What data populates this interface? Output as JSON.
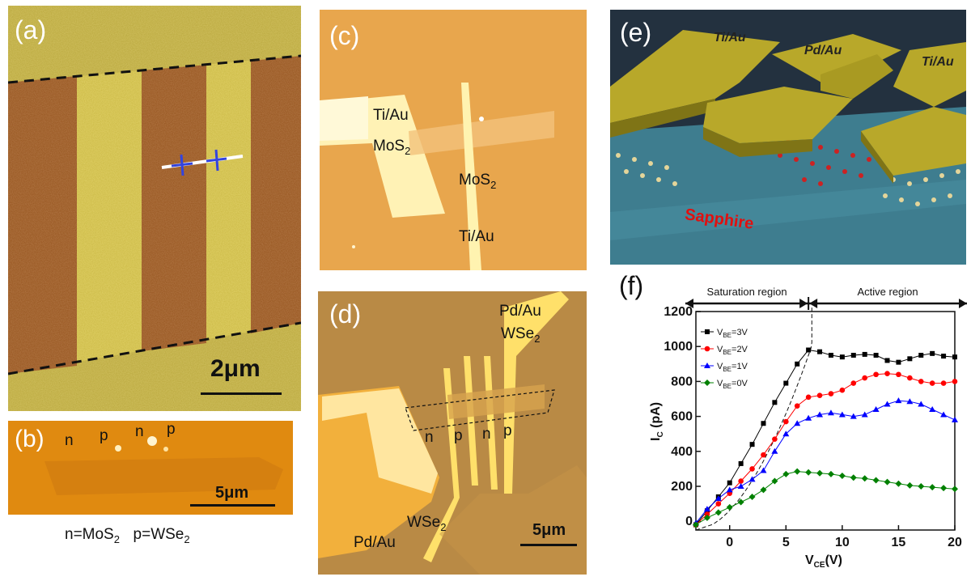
{
  "panel_a": {
    "label": "(a)",
    "scale": "2μm"
  },
  "panel_b": {
    "label": "(b)",
    "markers": [
      "n",
      "p",
      "n",
      "p"
    ],
    "scale": "5μm",
    "caption_n": "n=MoS",
    "caption_n_sub": "2",
    "caption_p": "p=WSe",
    "caption_p_sub": "2"
  },
  "panel_c": {
    "label": "(c)",
    "tiau_top": "Ti/Au",
    "mos2_left": "MoS",
    "mos2_left_sub": "2",
    "mos2_right": "MoS",
    "mos2_right_sub": "2",
    "tiau_bottom": "Ti/Au"
  },
  "panel_d": {
    "label": "(d)",
    "pdau_top": "Pd/Au",
    "wse2_top": "WSe",
    "wse2_top_sub": "2",
    "markers": [
      "n",
      "p",
      "n",
      "p"
    ],
    "pdau_bottom": "Pd/Au",
    "wse2_bottom": "WSe",
    "wse2_bottom_sub": "2",
    "scale": "5μm"
  },
  "panel_e": {
    "label": "(e)",
    "pad_left": "Ti/Au",
    "pad_mid": "Pd/Au",
    "pad_right": "Ti/Au",
    "substrate": "Sapphire"
  },
  "panel_f": {
    "label": "(f)"
  },
  "colors": {
    "series_3v": "#000000",
    "series_2v": "#ff0000",
    "series_1v": "#0000ff",
    "series_0v": "#008000",
    "sapphire_text": "#e01010",
    "pad_gold": "#b8a82a"
  },
  "chart_data": {
    "type": "scatter",
    "title": "",
    "xlabel": "V",
    "xlabel_sub": "CE",
    "xlabel_unit": "(V)",
    "ylabel": "I",
    "ylabel_sub": "C",
    "ylabel_unit": " (pA)",
    "xlim": [
      -3,
      20
    ],
    "ylim": [
      -50,
      1200
    ],
    "xticks": [
      0,
      5,
      10,
      15,
      20
    ],
    "yticks": [
      0,
      200,
      400,
      600,
      800,
      1000,
      1200
    ],
    "region_saturation": "Saturation region",
    "region_active": "Active region",
    "region_boundary_x": 7,
    "legend_position": "top-left",
    "series": [
      {
        "name": "V",
        "name_sub": "BE",
        "name_suffix": "=3V",
        "marker": "square",
        "color": "#000000",
        "x": [
          -3,
          -2,
          -1,
          0,
          1,
          2,
          3,
          4,
          5,
          6,
          7,
          8,
          9,
          10,
          11,
          12,
          13,
          14,
          15,
          16,
          17,
          18,
          19,
          20
        ],
        "y": [
          -20,
          60,
          140,
          220,
          330,
          440,
          560,
          680,
          790,
          900,
          980,
          970,
          950,
          940,
          950,
          955,
          950,
          920,
          910,
          930,
          950,
          960,
          945,
          940
        ]
      },
      {
        "name": "V",
        "name_sub": "BE",
        "name_suffix": "=2V",
        "marker": "circle",
        "color": "#ff0000",
        "x": [
          -3,
          -2,
          -1,
          0,
          1,
          2,
          3,
          4,
          5,
          6,
          7,
          8,
          9,
          10,
          11,
          12,
          13,
          14,
          15,
          16,
          17,
          18,
          19,
          20
        ],
        "y": [
          -20,
          40,
          100,
          160,
          230,
          300,
          380,
          470,
          570,
          660,
          710,
          720,
          730,
          750,
          790,
          820,
          840,
          845,
          840,
          820,
          800,
          790,
          790,
          800
        ]
      },
      {
        "name": "V",
        "name_sub": "BE",
        "name_suffix": "=1V",
        "marker": "triangle",
        "color": "#0000ff",
        "x": [
          -3,
          -2,
          -1,
          0,
          1,
          2,
          3,
          4,
          5,
          6,
          7,
          8,
          9,
          10,
          11,
          12,
          13,
          14,
          15,
          16,
          17,
          18,
          19,
          20
        ],
        "y": [
          -10,
          70,
          130,
          180,
          200,
          240,
          290,
          400,
          500,
          560,
          590,
          610,
          620,
          610,
          600,
          610,
          640,
          670,
          690,
          685,
          670,
          640,
          610,
          580
        ]
      },
      {
        "name": "V",
        "name_sub": "BE",
        "name_suffix": "=0V",
        "marker": "diamond",
        "color": "#008000",
        "x": [
          -3,
          -2,
          -1,
          0,
          1,
          2,
          3,
          4,
          5,
          6,
          7,
          8,
          9,
          10,
          11,
          12,
          13,
          14,
          15,
          16,
          17,
          18,
          19,
          20
        ],
        "y": [
          -20,
          20,
          50,
          80,
          110,
          140,
          180,
          230,
          270,
          285,
          280,
          275,
          270,
          260,
          250,
          245,
          235,
          225,
          215,
          205,
          200,
          195,
          190,
          185
        ]
      }
    ]
  }
}
